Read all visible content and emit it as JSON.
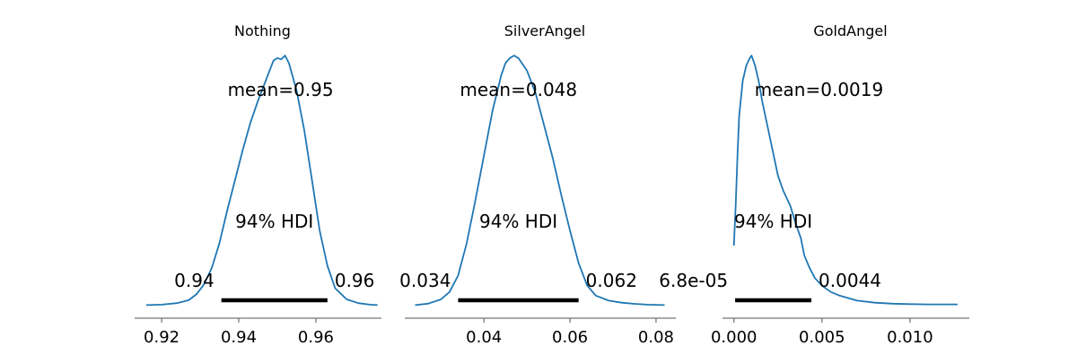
{
  "chart_data": [
    {
      "type": "area",
      "title": "Nothing",
      "mean_label": "mean=0.95",
      "hdi_label": "94% HDI",
      "hdi": [
        0.9355,
        0.963
      ],
      "hdi_low_label": "0.94",
      "hdi_high_label": "0.96",
      "xlim": [
        0.913,
        0.977
      ],
      "xticks": [
        0.92,
        0.94,
        0.96
      ],
      "xtick_labels": [
        "0.92",
        "0.94",
        "0.96"
      ],
      "density": {
        "x": [
          0.916,
          0.92,
          0.924,
          0.927,
          0.929,
          0.931,
          0.933,
          0.935,
          0.937,
          0.939,
          0.941,
          0.943,
          0.945,
          0.947,
          0.949,
          0.95,
          0.951,
          0.952,
          0.953,
          0.955,
          0.957,
          0.959,
          0.961,
          0.963,
          0.965,
          0.968,
          0.971,
          0.974,
          0.976
        ],
        "y": [
          0.002,
          0.004,
          0.01,
          0.022,
          0.045,
          0.085,
          0.15,
          0.25,
          0.38,
          0.5,
          0.62,
          0.73,
          0.82,
          0.9,
          0.98,
          0.99,
          0.985,
          1.0,
          0.97,
          0.86,
          0.7,
          0.5,
          0.3,
          0.16,
          0.07,
          0.025,
          0.01,
          0.004,
          0.002
        ]
      }
    },
    {
      "type": "area",
      "title": "SilverAngel",
      "mean_label": "mean=0.048",
      "hdi_label": "94% HDI",
      "hdi": [
        0.034,
        0.062
      ],
      "hdi_low_label": "0.034",
      "hdi_high_label": "0.062",
      "xlim": [
        0.0216,
        0.0846
      ],
      "xticks": [
        0.04,
        0.06,
        0.08
      ],
      "xtick_labels": [
        "0.04",
        "0.06",
        "0.08"
      ],
      "density": {
        "x": [
          0.024,
          0.027,
          0.03,
          0.032,
          0.034,
          0.036,
          0.038,
          0.04,
          0.042,
          0.044,
          0.045,
          0.046,
          0.047,
          0.048,
          0.05,
          0.052,
          0.054,
          0.056,
          0.058,
          0.06,
          0.062,
          0.064,
          0.066,
          0.069,
          0.072,
          0.075,
          0.078,
          0.082
        ],
        "y": [
          0.002,
          0.008,
          0.025,
          0.055,
          0.12,
          0.25,
          0.42,
          0.6,
          0.78,
          0.92,
          0.97,
          0.99,
          1.0,
          0.99,
          0.94,
          0.85,
          0.72,
          0.59,
          0.44,
          0.3,
          0.17,
          0.08,
          0.04,
          0.02,
          0.012,
          0.007,
          0.004,
          0.002
        ]
      }
    },
    {
      "type": "area",
      "title": "GoldAngel",
      "mean_label": "mean=0.0019",
      "hdi_label": "94% HDI",
      "hdi": [
        6.8e-05,
        0.0044
      ],
      "hdi_low_label": "6.8e-05",
      "hdi_high_label": "0.0044",
      "xlim": [
        -0.00065,
        0.01337
      ],
      "xticks": [
        0.0,
        0.005,
        0.01
      ],
      "xtick_labels": [
        "0.000",
        "0.005",
        "0.010"
      ],
      "density": {
        "x": [
          0.0,
          0.0001,
          0.0002,
          0.0003,
          0.0005,
          0.0007,
          0.0009,
          0.001,
          0.0012,
          0.0014,
          0.0016,
          0.0019,
          0.0022,
          0.0025,
          0.0028,
          0.0032,
          0.0035,
          0.0038,
          0.004,
          0.0043,
          0.0046,
          0.005,
          0.0055,
          0.006,
          0.0065,
          0.007,
          0.008,
          0.009,
          0.01,
          0.011,
          0.0127
        ],
        "y": [
          0.24,
          0.4,
          0.6,
          0.76,
          0.9,
          0.96,
          0.99,
          1.0,
          0.96,
          0.9,
          0.82,
          0.72,
          0.62,
          0.52,
          0.46,
          0.4,
          0.33,
          0.27,
          0.2,
          0.15,
          0.11,
          0.08,
          0.055,
          0.04,
          0.03,
          0.02,
          0.012,
          0.008,
          0.006,
          0.005,
          0.005
        ]
      }
    }
  ],
  "colors": {
    "line": "#1f77b4",
    "hdi_bar": "#000000",
    "axis": "#555555",
    "text": "#000000"
  }
}
